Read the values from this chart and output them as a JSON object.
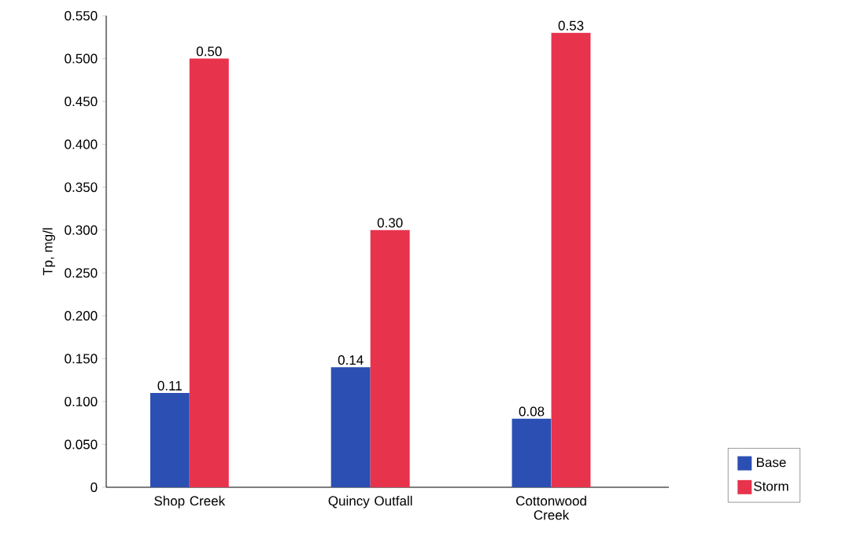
{
  "chart_data": {
    "type": "bar",
    "ylabel": "Tp, mg/l",
    "categories": [
      "Shop Creek",
      "Quincy Outfall",
      "Cottonwood Creek"
    ],
    "series": [
      {
        "name": "Base",
        "color": "#2b4fb3",
        "values": [
          0.11,
          0.14,
          0.08
        ],
        "value_labels": [
          "0.11",
          "0.14",
          "0.08"
        ]
      },
      {
        "name": "Storm",
        "color": "#e8334d",
        "values": [
          0.5,
          0.3,
          0.53
        ],
        "value_labels": [
          "0.50",
          "0.30",
          "0.53"
        ]
      }
    ],
    "ylim": [
      0,
      0.55
    ],
    "yticks": [
      0,
      {
        "value": 0.05,
        "label": "0.050"
      },
      {
        "value": 0.1,
        "label": "0.100"
      },
      {
        "value": 0.15,
        "label": "0.150"
      },
      {
        "value": 0.2,
        "label": "0.200"
      },
      {
        "value": 0.25,
        "label": "0.250"
      },
      {
        "value": 0.3,
        "label": "0.300"
      },
      {
        "value": 0.35,
        "label": "0.350"
      },
      {
        "value": 0.4,
        "label": "0.400"
      },
      {
        "value": 0.45,
        "label": "0.450"
      },
      {
        "value": 0.5,
        "label": "0.500"
      },
      {
        "value": 0.55,
        "label": "0.550"
      }
    ],
    "grid": false,
    "legend": "bottom right"
  }
}
